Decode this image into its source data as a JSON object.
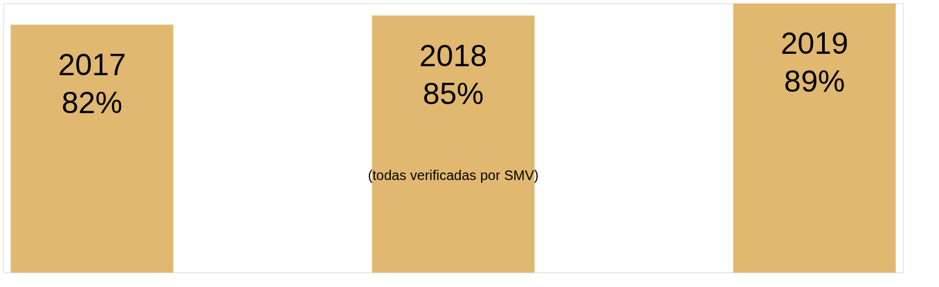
{
  "chart_data": {
    "type": "bar",
    "categories": [
      "2017",
      "2018",
      "2019"
    ],
    "values": [
      82,
      85,
      89
    ],
    "value_labels": [
      "82%",
      "85%",
      "89%"
    ],
    "color": "#e0b870",
    "annotations": [
      "(todas verificadas por SMV)"
    ]
  }
}
